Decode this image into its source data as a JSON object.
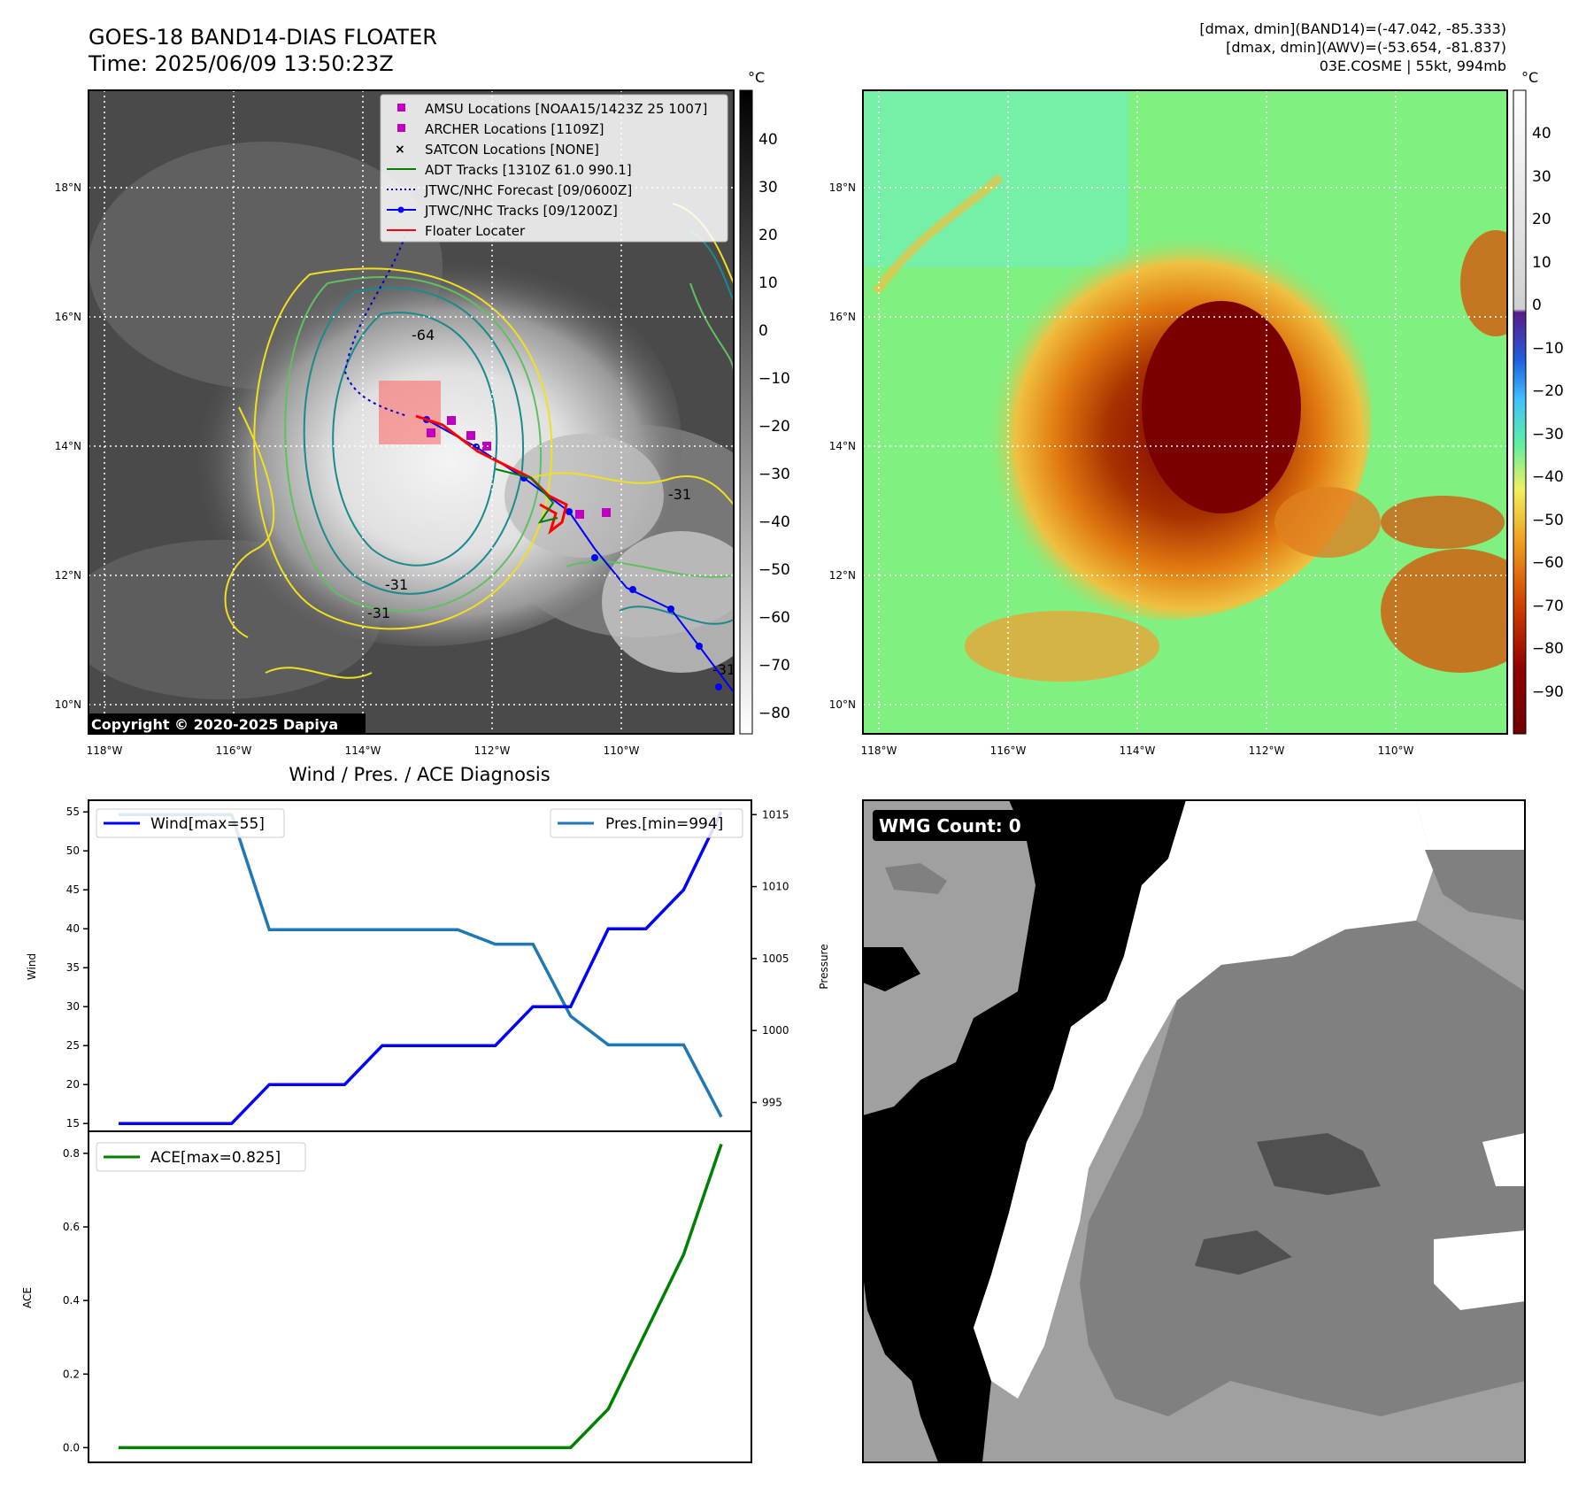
{
  "header": {
    "title_line1": "GOES-18 BAND14-DIAS FLOATER",
    "title_line2": "Time: 2025/06/09 13:50:23Z",
    "info_line1": "[dmax, dmin](BAND14)=(-47.042, -85.333)",
    "info_line2": "[dmax, dmin](AWV)=(-53.654, -81.837)",
    "info_line3": "03E.COSME | 55kt, 994mb"
  },
  "map": {
    "lat_labels": [
      "18°N",
      "16°N",
      "14°N",
      "12°N",
      "10°N"
    ],
    "lon_labels": [
      "118°W",
      "116°W",
      "114°W",
      "112°W",
      "110°W"
    ],
    "copyright": "Copyright © 2020-2025 Dapiya",
    "contour_labels": [
      "-64",
      "-31",
      "-31",
      "-31",
      "-31"
    ],
    "legend": [
      {
        "label": "AMSU Locations [NOAA15/1423Z 25 1007]",
        "color": "#c000c0"
      },
      {
        "label": "ARCHER Locations [1109Z]",
        "color": "#c000c0"
      },
      {
        "label": "SATCON Locations [NONE]",
        "color": "#00b0b0"
      },
      {
        "label": "ADT Tracks [1310Z 61.0 990.1]",
        "color": "#008000"
      },
      {
        "label": "JTWC/NHC Forecast [09/0600Z]",
        "color": "#0000cc"
      },
      {
        "label": "JTWC/NHC Tracks [09/1200Z]",
        "color": "#0000ff"
      },
      {
        "label": "Floater Locater",
        "color": "#ff0000"
      }
    ]
  },
  "colorbar_left": {
    "unit": "°C",
    "ticks": [
      "40",
      "30",
      "20",
      "10",
      "0",
      "−10",
      "−20",
      "−30",
      "−40",
      "−50",
      "−60",
      "−70",
      "−80"
    ]
  },
  "colorbar_right": {
    "unit": "°C",
    "ticks": [
      "40",
      "30",
      "20",
      "10",
      "0",
      "−10",
      "−20",
      "−30",
      "−40",
      "−50",
      "−60",
      "−70",
      "−80",
      "−90"
    ]
  },
  "diagnosis": {
    "title": "Wind / Pres. / ACE Diagnosis",
    "wind_ylabel": "Wind",
    "pres_ylabel": "Pressure",
    "ace_ylabel": "ACE",
    "wind_legend": "Wind[max=55]",
    "pres_legend": "Pres.[min=994]",
    "ace_legend": "ACE[max=0.825]",
    "wind_ticks": [
      "55",
      "50",
      "45",
      "40",
      "35",
      "30",
      "25",
      "20",
      "15"
    ],
    "pres_ticks": [
      "1015",
      "1010",
      "1005",
      "1000",
      "995"
    ],
    "ace_ticks": [
      "0.8",
      "0.6",
      "0.4",
      "0.2",
      "0.0"
    ]
  },
  "wmg": {
    "label": "WMG Count: 0"
  },
  "chart_data": [
    {
      "type": "line",
      "title": "Wind / Pres. / ACE Diagnosis",
      "x": [
        0,
        1,
        2,
        3,
        4,
        5,
        6,
        7,
        8,
        9,
        10,
        11,
        12,
        13,
        14,
        15,
        16
      ],
      "series": [
        {
          "name": "Wind[max=55]",
          "axis": "left",
          "color": "#0000ff",
          "values": [
            15,
            15,
            15,
            15,
            20,
            20,
            20,
            25,
            25,
            25,
            25,
            30,
            30,
            40,
            40,
            45,
            55
          ]
        },
        {
          "name": "Pres.[min=994]",
          "axis": "right",
          "color": "#1f77b4",
          "values": [
            1015,
            1015,
            1015,
            1015,
            1007,
            1007,
            1007,
            1007,
            1007,
            1007,
            1006,
            1006,
            1001,
            999,
            999,
            999,
            994
          ]
        }
      ],
      "ylabel": "Wind",
      "ylim": [
        14,
        56.5
      ],
      "ylabel_right": "Pressure",
      "ylim_right": [
        993,
        1016
      ],
      "legend": [
        "top-left",
        "top-right"
      ]
    },
    {
      "type": "line",
      "x": [
        0,
        1,
        2,
        3,
        4,
        5,
        6,
        7,
        8,
        9,
        10,
        11,
        12,
        13,
        14,
        15,
        16
      ],
      "series": [
        {
          "name": "ACE[max=0.825]",
          "color": "#008000",
          "values": [
            0,
            0,
            0,
            0,
            0,
            0,
            0,
            0,
            0,
            0,
            0,
            0,
            0,
            0.105,
            0.315,
            0.525,
            0.825
          ]
        }
      ],
      "ylabel": "ACE",
      "ylim": [
        -0.04,
        0.86
      ],
      "legend": "top-left"
    }
  ]
}
